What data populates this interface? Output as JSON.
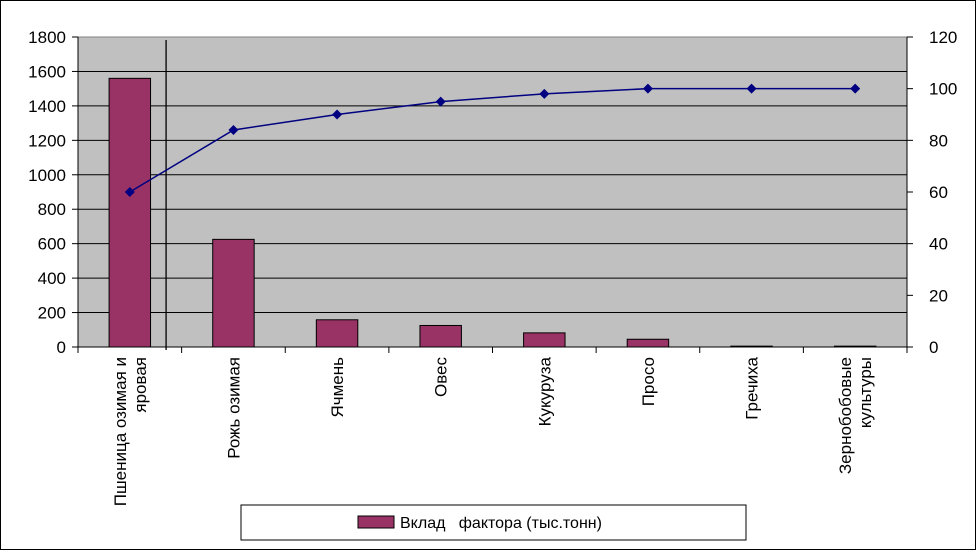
{
  "chart_data": {
    "type": "bar",
    "title": "",
    "xlabel": "",
    "ylabel": "",
    "categories": [
      [
        "Пшеница озимая и",
        "яровая"
      ],
      [
        "Рожь озимая"
      ],
      [
        "Ячмень"
      ],
      [
        "Овес"
      ],
      [
        "Кукуруза"
      ],
      [
        "Просо"
      ],
      [
        "Гречиха"
      ],
      [
        "Зернобобовые",
        "культуры"
      ]
    ],
    "series": [
      {
        "name": "Вклад   фактора (тыс.тонн)",
        "type": "bar",
        "axis": "left",
        "color": "#993366",
        "values": [
          1560,
          625,
          158,
          125,
          82,
          45,
          5,
          5
        ]
      },
      {
        "type": "line",
        "axis": "right",
        "color": "#000080",
        "values": [
          60,
          84,
          90,
          95,
          98,
          100,
          100,
          100
        ]
      }
    ],
    "ylim": [
      0,
      1800
    ],
    "yticks": [
      "0",
      "200",
      "400",
      "600",
      "800",
      "1000",
      "1200",
      "1400",
      "1600",
      "1800"
    ],
    "y2lim": [
      0,
      120
    ],
    "y2ticks": [
      "0",
      "20",
      "40",
      "60",
      "80",
      "100",
      "120"
    ],
    "grid": true,
    "plot_background": "#c0c0c0",
    "legend": "bottom-center",
    "marker_line_after_category": 1
  }
}
